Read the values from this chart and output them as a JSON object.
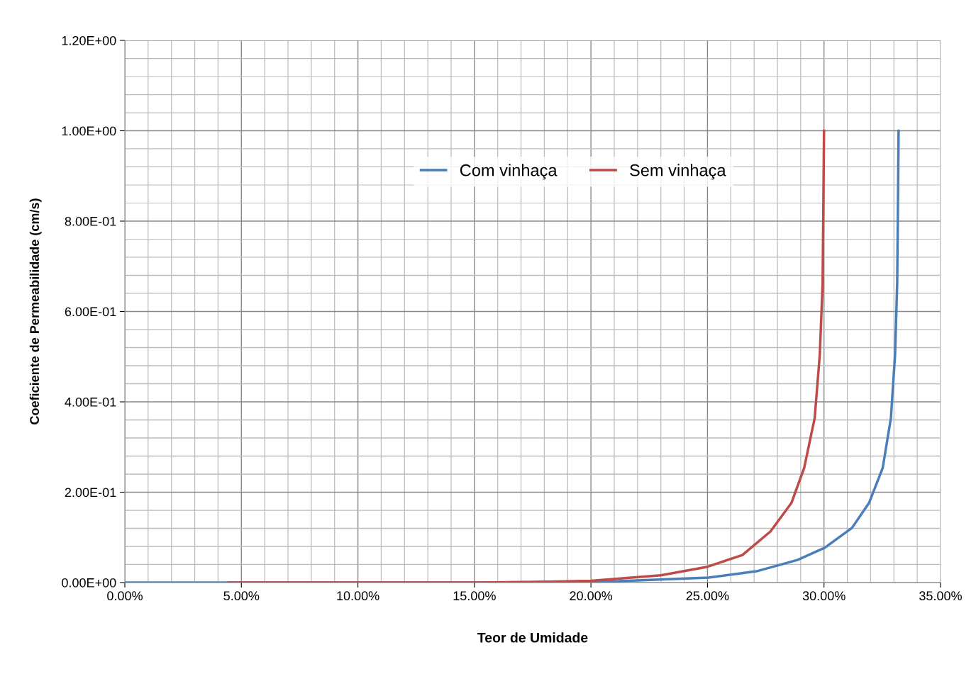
{
  "chart_data": {
    "type": "line",
    "xlabel": "Teor de Umidade",
    "ylabel": "Coeficiente de Permeabilidade (cm/s)",
    "series": [
      {
        "name": "Com vinhaça",
        "color": "#4a7ebb",
        "x": [
          0,
          4.5,
          10,
          15,
          21.2,
          25.04,
          27.1,
          28.86,
          30.03,
          31.2,
          31.93,
          32.52,
          32.87,
          33.05,
          33.14,
          33.17,
          33.2
        ],
        "values": [
          0,
          0,
          0,
          0,
          0.003,
          0.011,
          0.025,
          0.05,
          0.077,
          0.121,
          0.176,
          0.254,
          0.364,
          0.505,
          0.662,
          0.819,
          1.0
        ]
      },
      {
        "name": "Sem vinhaça",
        "color": "#be4b48",
        "x": [
          4.46,
          10,
          15,
          17.4,
          20,
          23,
          25,
          26.5,
          27.7,
          28.6,
          29.15,
          29.6,
          29.82,
          29.94,
          29.97,
          30.0
        ],
        "values": [
          0,
          0,
          0,
          0.001,
          0.004,
          0.016,
          0.035,
          0.061,
          0.113,
          0.176,
          0.254,
          0.364,
          0.505,
          0.662,
          0.819,
          1.0
        ]
      }
    ],
    "xlim": [
      0,
      35
    ],
    "xticks": [
      {
        "value": 0,
        "label": "0.00%"
      },
      {
        "value": 5,
        "label": "5.00%"
      },
      {
        "value": 10,
        "label": "10.00%"
      },
      {
        "value": 15,
        "label": "15.00%"
      },
      {
        "value": 20,
        "label": "20.00%"
      },
      {
        "value": 25,
        "label": "25.00%"
      },
      {
        "value": 30,
        "label": "30.00%"
      },
      {
        "value": 35,
        "label": "35.00%"
      }
    ],
    "ylim": [
      0,
      1.2
    ],
    "yticks": [
      {
        "value": 0,
        "label": "0.00E+00"
      },
      {
        "value": 0.2,
        "label": "2.00E-01"
      },
      {
        "value": 0.4,
        "label": "4.00E-01"
      },
      {
        "value": 0.6,
        "label": "6.00E-01"
      },
      {
        "value": 0.8,
        "label": "8.00E-01"
      },
      {
        "value": 1.0,
        "label": "1.00E+00"
      },
      {
        "value": 1.2,
        "label": "1.20E+00"
      }
    ],
    "grid": true,
    "legend": "top",
    "marker": "none",
    "line_style": "solid"
  }
}
